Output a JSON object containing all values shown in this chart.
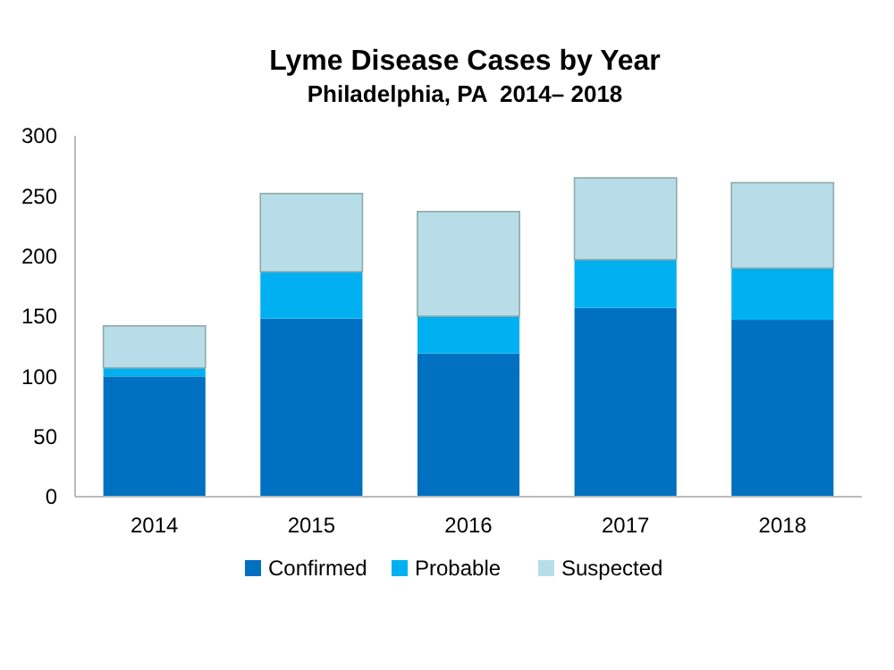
{
  "chart_data": {
    "type": "bar",
    "title": "Lyme Disease Cases by Year",
    "subtitle": "Philadelphia, PA  2014– 2018",
    "categories": [
      "2014",
      "2015",
      "2016",
      "2017",
      "2018"
    ],
    "stacked": true,
    "series": [
      {
        "name": "Confirmed",
        "color": "#0070c0",
        "values": [
          100,
          148,
          119,
          157,
          147
        ]
      },
      {
        "name": "Probable",
        "color": "#00b0f0",
        "values": [
          7,
          39,
          31,
          40,
          43
        ]
      },
      {
        "name": "Suspected",
        "color": "#b7dee8",
        "values": [
          35,
          65,
          87,
          68,
          71
        ]
      }
    ],
    "ylim": [
      0,
      300
    ],
    "yticks": [
      0,
      50,
      100,
      150,
      200,
      250,
      300
    ],
    "legend": "bottom"
  }
}
